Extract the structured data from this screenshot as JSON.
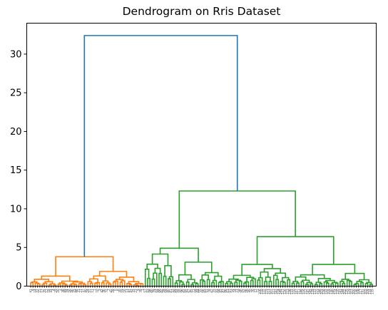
{
  "chart_data": {
    "type": "dendrogram",
    "title": "Dendrogram on Rris Dataset",
    "xlabel": "",
    "ylabel": "",
    "ylim": [
      0,
      34
    ],
    "y_ticks": [
      0,
      5,
      10,
      15,
      20,
      25,
      30
    ],
    "grid": false,
    "legend": "none",
    "colors": {
      "root": "#1f77b4",
      "cluster_a": "#ff7f0e",
      "cluster_b": "#2ca02c"
    },
    "clusters": [
      {
        "color_key": "cluster_a",
        "leaf_count": 50,
        "merge_height": 3.8
      },
      {
        "color_key": "cluster_b",
        "leaf_count": 100,
        "merge_height": 12.3
      }
    ],
    "merges": [
      {
        "label": "root",
        "height": 32.4,
        "color_key": "root",
        "children": [
          "A",
          "B"
        ]
      },
      {
        "label": "A",
        "height": 3.8,
        "color_key": "cluster_a",
        "children": [
          "A1",
          "A2"
        ]
      },
      {
        "label": "A1",
        "height": 1.3,
        "color_key": "cluster_a",
        "children": []
      },
      {
        "label": "A2",
        "height": 1.9,
        "color_key": "cluster_a",
        "children": []
      },
      {
        "label": "B",
        "height": 12.3,
        "color_key": "cluster_b",
        "children": [
          "B1",
          "B2"
        ]
      },
      {
        "label": "B1",
        "height": 4.9,
        "color_key": "cluster_b",
        "children": []
      },
      {
        "label": "B2",
        "height": 6.4,
        "color_key": "cluster_b",
        "children": [
          "B2a",
          "B2b"
        ]
      },
      {
        "label": "B2a",
        "height": 2.8,
        "color_key": "cluster_b",
        "children": []
      },
      {
        "label": "B2b",
        "height": 2.8,
        "color_key": "cluster_b",
        "children": []
      }
    ],
    "leaf_labels": [
      "41",
      "8",
      "14",
      "22",
      "15",
      "17",
      "35",
      "12",
      "18",
      "44",
      "4",
      "29",
      "20",
      "2",
      "38",
      "49",
      "34",
      "26",
      "46",
      "25",
      "48",
      "31",
      "27",
      "37",
      "40",
      "24",
      "21",
      "11",
      "1",
      "10",
      "5",
      "42",
      "36",
      "32",
      "7",
      "45",
      "28",
      "0",
      "6",
      "30",
      "19",
      "16",
      "13",
      "47",
      "43",
      "33",
      "23",
      "9",
      "39",
      "3",
      "57",
      "93",
      "98",
      "60",
      "79",
      "64",
      "88",
      "82",
      "59",
      "69",
      "80",
      "81",
      "53",
      "89",
      "94",
      "95",
      "96",
      "62",
      "92",
      "67",
      "85",
      "71",
      "99",
      "84",
      "55",
      "66",
      "65",
      "51",
      "78",
      "61",
      "75",
      "91",
      "68",
      "83",
      "87",
      "86",
      "63",
      "97",
      "54",
      "74",
      "73",
      "58",
      "90",
      "52",
      "56",
      "50",
      "70",
      "76",
      "77",
      "72",
      "106",
      "118",
      "122",
      "119",
      "113",
      "101",
      "121",
      "142",
      "114",
      "149",
      "127",
      "126",
      "123",
      "138",
      "133",
      "110",
      "147",
      "111",
      "146",
      "116",
      "112",
      "141",
      "145",
      "139",
      "137",
      "115",
      "148",
      "103",
      "128",
      "132",
      "104",
      "130",
      "140",
      "124",
      "120",
      "143",
      "144",
      "102",
      "125",
      "129",
      "107",
      "100",
      "136",
      "108",
      "117",
      "131",
      "105",
      "109",
      "134",
      "135"
    ]
  }
}
